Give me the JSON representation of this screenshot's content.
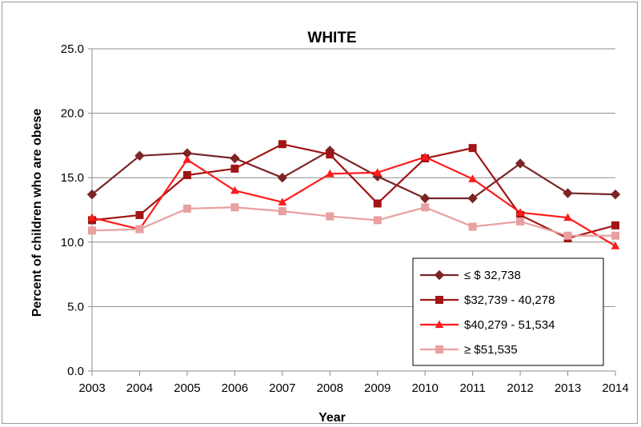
{
  "chart_data": {
    "type": "line",
    "title": "WHITE",
    "xlabel": "Year",
    "ylabel": "Percent of children who are obese",
    "ylim": [
      0,
      25
    ],
    "yticks": [
      "0.0",
      "5.0",
      "10.0",
      "15.0",
      "20.0",
      "25.0"
    ],
    "ytick_values": [
      0,
      5,
      10,
      15,
      20,
      25
    ],
    "x": [
      "2003",
      "2004",
      "2005",
      "2006",
      "2007",
      "2008",
      "2009",
      "2010",
      "2011",
      "2012",
      "2013",
      "2014"
    ],
    "grid": true,
    "legend_position": "bottom-right",
    "series": [
      {
        "name": "≤ $ 32,738",
        "color": "#7b2525",
        "marker": "diamond",
        "values": [
          13.7,
          16.7,
          16.9,
          16.5,
          15.0,
          17.1,
          15.1,
          13.4,
          13.4,
          16.1,
          13.8,
          13.7
        ]
      },
      {
        "name": "$32,739 - 40,278",
        "color": "#a01515",
        "marker": "square",
        "values": [
          11.7,
          12.1,
          15.2,
          15.7,
          17.6,
          16.8,
          13.0,
          16.5,
          17.3,
          12.1,
          10.3,
          11.3
        ]
      },
      {
        "name": "$40,279 - 51,534",
        "color": "#ff1a1a",
        "marker": "triangle",
        "values": [
          11.9,
          11.0,
          16.4,
          14.0,
          13.1,
          15.3,
          15.4,
          16.6,
          14.9,
          12.3,
          11.9,
          9.7
        ]
      },
      {
        "name": "≥ $51,535",
        "color": "#e8a0a0",
        "marker": "square",
        "values": [
          10.9,
          11.0,
          12.6,
          12.7,
          12.4,
          12.0,
          11.7,
          12.7,
          11.2,
          11.6,
          10.5,
          10.5
        ]
      }
    ]
  }
}
